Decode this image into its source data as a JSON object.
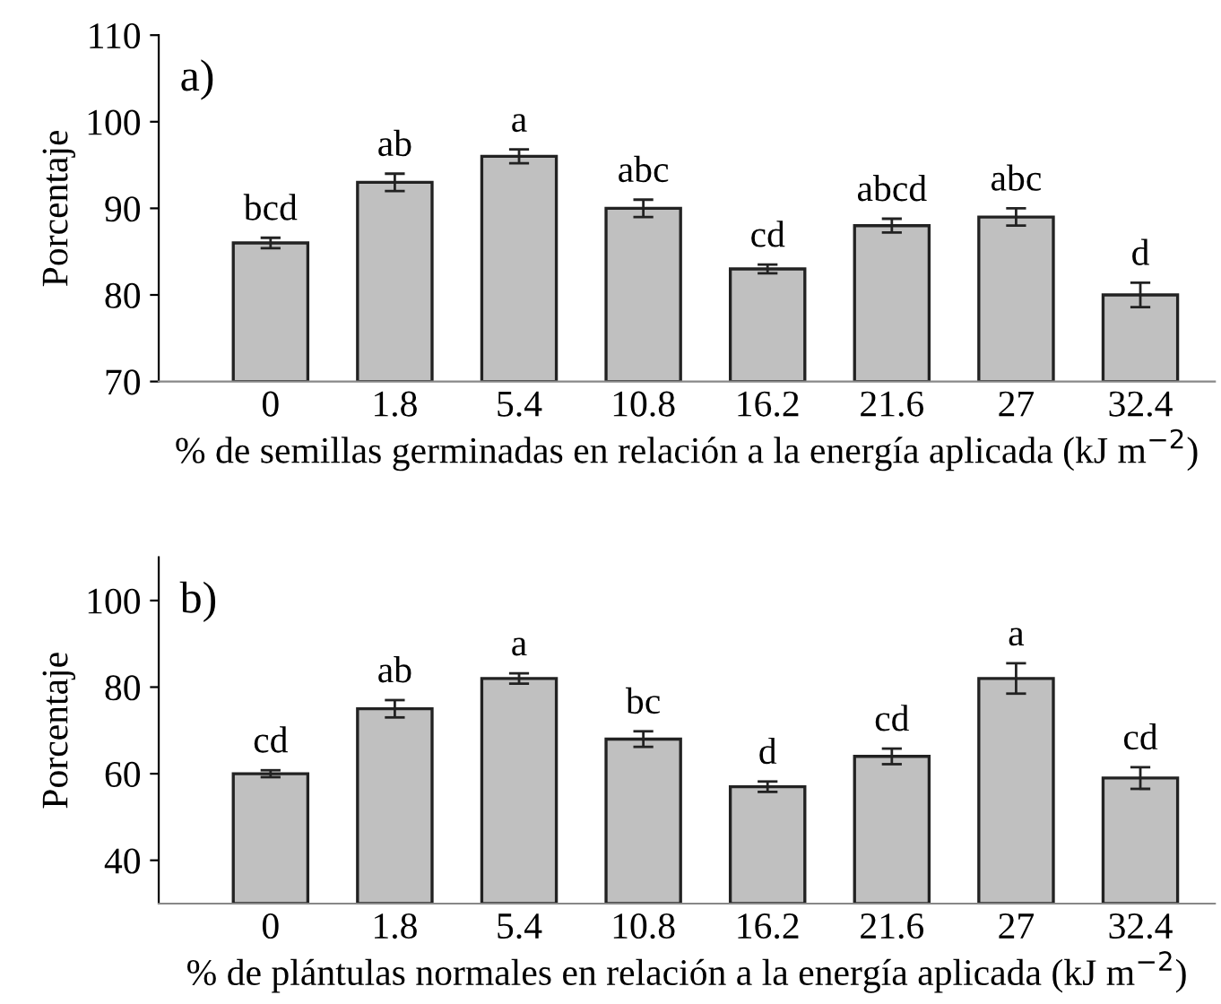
{
  "chart_data": [
    {
      "type": "bar",
      "xlabel": "% de semillas germinadas en relación a la energía aplicada (kJ m$^{−2}$)",
      "ylabel": "Porcentaje",
      "categories": [
        "0",
        "1.8",
        "5.4",
        "10.8",
        "16.2",
        "21.6",
        "27",
        "32.4"
      ],
      "values": [
        86,
        93,
        96,
        90,
        83,
        88,
        89,
        80
      ],
      "errors": [
        0.6,
        1,
        0.8,
        1,
        0.5,
        0.8,
        1,
        1.4
      ],
      "color": "#c0c0c0",
      "ylim": [
        70,
        110
      ],
      "yticks": [
        70,
        80,
        90,
        100,
        110
      ],
      "grid": false,
      "annotations": [
        "a)",
        {
          "text": "bcd",
          "x": "0",
          "y": 86.6
        },
        {
          "text": "ab",
          "x": "1.8",
          "y": 94
        },
        {
          "text": "a",
          "x": "5.4",
          "y": 96.8
        },
        {
          "text": "abc",
          "x": "10.8",
          "y": 91
        },
        {
          "text": "cd",
          "x": "16.2",
          "y": 83.5
        },
        {
          "text": "abcd",
          "x": "21.6",
          "y": 88.8
        },
        {
          "text": "abc",
          "x": "27",
          "y": 90
        },
        {
          "text": "d",
          "x": "32.4",
          "y": 81.4
        }
      ]
    },
    {
      "type": "bar",
      "xlabel": "% de plántulas normales en relación a la energía aplicada (kJ m$^{−2}$)",
      "ylabel": "Porcentaje",
      "categories": [
        "0",
        "1.8",
        "5.4",
        "10.8",
        "16.2",
        "21.6",
        "27",
        "32.4"
      ],
      "values": [
        60,
        75,
        82,
        68,
        57,
        64,
        82,
        59
      ],
      "errors": [
        0.8,
        2,
        1.2,
        1.8,
        1.2,
        1.8,
        3.5,
        2.5
      ],
      "color": "#c0c0c0",
      "ylim": [
        30,
        110
      ],
      "yticks": [
        40,
        60,
        80,
        100
      ],
      "grid": false,
      "annotations": [
        "b)",
        {
          "text": "cd",
          "x": "0",
          "y": 60.8
        },
        {
          "text": "ab",
          "x": "1.8",
          "y": 77
        },
        {
          "text": "a",
          "x": "5.4",
          "y": 83.2
        },
        {
          "text": "bc",
          "x": "10.8",
          "y": 69.8
        },
        {
          "text": "d",
          "x": "16.2",
          "y": 58.2
        },
        {
          "text": "cd",
          "x": "21.6",
          "y": 65.8
        },
        {
          "text": "a",
          "x": "27",
          "y": 85.5
        },
        {
          "text": "cd",
          "x": "32.4",
          "y": 61.5
        }
      ]
    }
  ]
}
